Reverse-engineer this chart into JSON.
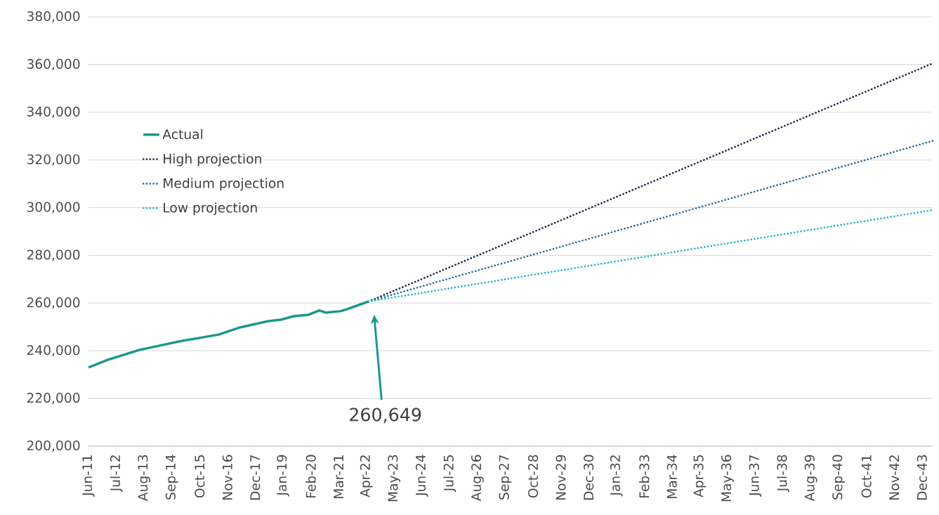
{
  "chart_data": {
    "type": "line",
    "series": [
      {
        "name": "Actual",
        "color": "#1b978b",
        "line_style": "solid",
        "x": [
          "2011-06",
          "2012-03",
          "2013-06",
          "2014-03",
          "2015-02",
          "2015-12",
          "2016-07",
          "2017-05",
          "2018-06",
          "2018-12",
          "2019-06",
          "2020-01",
          "2020-06",
          "2020-09",
          "2021-04",
          "2021-07",
          "2022-05"
        ],
        "values": [
          233000,
          236200,
          240400,
          242100,
          244200,
          245700,
          246800,
          249800,
          252400,
          253000,
          254500,
          255100,
          256900,
          256000,
          256600,
          257400,
          260649
        ]
      },
      {
        "name": "High projection",
        "color": "#1f2b4d",
        "line_style": "dotted",
        "x": [
          "2022-05",
          "2044-05"
        ],
        "values": [
          260649,
          360500
        ]
      },
      {
        "name": "Medium projection",
        "color": "#2e6f9e",
        "line_style": "dotted",
        "x": [
          "2022-05",
          "2044-05"
        ],
        "values": [
          260649,
          328000
        ]
      },
      {
        "name": "Low projection",
        "color": "#27b4c9",
        "line_style": "dotted",
        "x": [
          "2022-05",
          "2044-05"
        ],
        "values": [
          260649,
          299000
        ]
      }
    ],
    "annotations": [
      "260,649"
    ],
    "xlim": [
      "2011-06",
      "2044-05"
    ],
    "xticks": [
      {
        "value": "2011-06",
        "label": "Jun-11"
      },
      {
        "value": "2012-07",
        "label": "Jul-12"
      },
      {
        "value": "2013-08",
        "label": "Aug-13"
      },
      {
        "value": "2014-09",
        "label": "Sep-14"
      },
      {
        "value": "2015-10",
        "label": "Oct-15"
      },
      {
        "value": "2016-11",
        "label": "Nov-16"
      },
      {
        "value": "2017-12",
        "label": "Dec-17"
      },
      {
        "value": "2019-01",
        "label": "Jan-19"
      },
      {
        "value": "2020-02",
        "label": "Feb-20"
      },
      {
        "value": "2021-03",
        "label": "Mar-21"
      },
      {
        "value": "2022-04",
        "label": "Apr-22"
      },
      {
        "value": "2023-05",
        "label": "May-23"
      },
      {
        "value": "2024-06",
        "label": "Jun-24"
      },
      {
        "value": "2025-07",
        "label": "Jul-25"
      },
      {
        "value": "2026-08",
        "label": "Aug-26"
      },
      {
        "value": "2027-09",
        "label": "Sep-27"
      },
      {
        "value": "2028-10",
        "label": "Oct-28"
      },
      {
        "value": "2029-11",
        "label": "Nov-29"
      },
      {
        "value": "2030-12",
        "label": "Dec-30"
      },
      {
        "value": "2032-01",
        "label": "Jan-32"
      },
      {
        "value": "2033-02",
        "label": "Feb-33"
      },
      {
        "value": "2034-03",
        "label": "Mar-34"
      },
      {
        "value": "2035-04",
        "label": "Apr-35"
      },
      {
        "value": "2036-05",
        "label": "May-36"
      },
      {
        "value": "2037-06",
        "label": "Jun-37"
      },
      {
        "value": "2038-07",
        "label": "Jul-38"
      },
      {
        "value": "2039-08",
        "label": "Aug-39"
      },
      {
        "value": "2040-09",
        "label": "Sep-40"
      },
      {
        "value": "2041-10",
        "label": "Oct-41"
      },
      {
        "value": "2042-11",
        "label": "Nov-42"
      },
      {
        "value": "2043-12",
        "label": "Dec-43"
      }
    ],
    "ylim": [
      200000,
      380000
    ],
    "yticks": [
      {
        "value": 200000,
        "label": "200,000"
      },
      {
        "value": 220000,
        "label": "220,000"
      },
      {
        "value": 240000,
        "label": "240,000"
      },
      {
        "value": 260000,
        "label": "260,000"
      },
      {
        "value": 280000,
        "label": "280,000"
      },
      {
        "value": 300000,
        "label": "300,000"
      },
      {
        "value": 320000,
        "label": "320,000"
      },
      {
        "value": 340000,
        "label": "340,000"
      },
      {
        "value": 360000,
        "label": "360,000"
      },
      {
        "value": 380000,
        "label": "380,000"
      }
    ],
    "grid": "y",
    "legend": "left",
    "marker": "none"
  }
}
